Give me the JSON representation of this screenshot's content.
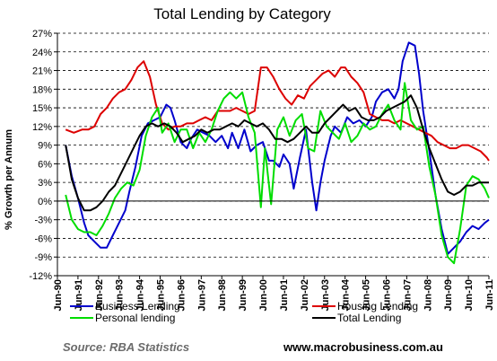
{
  "chart_data": {
    "type": "line",
    "title": "Total Lending by Category",
    "ylabel": "% Growth per Annum",
    "xlabel": "",
    "ylim": [
      -12,
      27
    ],
    "y_ticks": [
      "27%",
      "24%",
      "21%",
      "18%",
      "15%",
      "12%",
      "9%",
      "6%",
      "3%",
      "0%",
      "-3%",
      "-6%",
      "-9%",
      "-12%"
    ],
    "y_tick_values": [
      27,
      24,
      21,
      18,
      15,
      12,
      9,
      6,
      3,
      0,
      -3,
      -6,
      -9,
      -12
    ],
    "x_ticks": [
      "Jun-90",
      "Jun-91",
      "Jun-92",
      "Jun-93",
      "Jun-94",
      "Jun-95",
      "Jun-96",
      "Jun-97",
      "Jun-98",
      "Jun-99",
      "Jun-00",
      "Jun-01",
      "Jun-02",
      "Jun-03",
      "Jun-04",
      "Jun-05",
      "Jun-06",
      "Jun-07",
      "Jun-08",
      "Jun-09",
      "Jun-10",
      "Jun-11"
    ],
    "x_tick_values": [
      1990.5,
      1991.5,
      1992.5,
      1993.5,
      1994.5,
      1995.5,
      1996.5,
      1997.5,
      1998.5,
      1999.5,
      2000.5,
      2001.5,
      2002.5,
      2003.5,
      2004.5,
      2005.5,
      2006.5,
      2007.5,
      2008.5,
      2009.5,
      2010.5,
      2011.5
    ],
    "xlim": [
      1990.5,
      2011.5
    ],
    "grid": "horizontal-dashed",
    "legend_position": "bottom",
    "series": [
      {
        "name": "Business Lending",
        "color": "#0000cc",
        "x": [
          1990.9,
          1991.2,
          1991.5,
          1991.8,
          1992.0,
          1992.3,
          1992.6,
          1992.9,
          1993.2,
          1993.5,
          1993.8,
          1994.0,
          1994.3,
          1994.6,
          1994.9,
          1995.2,
          1995.5,
          1995.8,
          1996.0,
          1996.2,
          1996.5,
          1996.8,
          1997.0,
          1997.3,
          1997.6,
          1997.9,
          1998.2,
          1998.5,
          1998.8,
          1999.0,
          1999.3,
          1999.6,
          1999.9,
          2000.2,
          2000.5,
          2000.8,
          2001.0,
          2001.3,
          2001.5,
          2001.8,
          2002.0,
          2002.3,
          2002.6,
          2002.9,
          2003.1,
          2003.3,
          2003.5,
          2003.8,
          2004.0,
          2004.3,
          2004.6,
          2004.9,
          2005.2,
          2005.5,
          2005.8,
          2006.0,
          2006.3,
          2006.6,
          2006.9,
          2007.1,
          2007.3,
          2007.6,
          2007.9,
          2008.1,
          2008.3,
          2008.6,
          2008.9,
          2009.2,
          2009.5,
          2009.8,
          2010.1,
          2010.4,
          2010.7,
          2011.0,
          2011.3,
          2011.5
        ],
        "values": [
          9.0,
          4.0,
          0.5,
          -3.5,
          -5.5,
          -6.5,
          -7.5,
          -7.5,
          -5.5,
          -3.5,
          -1.5,
          1.5,
          5.5,
          10.5,
          12.5,
          13.0,
          13.5,
          15.5,
          15.0,
          13.0,
          9.5,
          8.5,
          10.0,
          11.5,
          11.0,
          10.5,
          9.5,
          10.5,
          8.5,
          11.0,
          8.5,
          11.5,
          8.0,
          9.0,
          9.5,
          6.5,
          6.5,
          5.5,
          7.5,
          6.0,
          2.0,
          7.0,
          11.5,
          3.0,
          -1.5,
          3.0,
          6.5,
          10.5,
          12.0,
          11.0,
          13.5,
          12.5,
          13.0,
          12.0,
          13.5,
          16.0,
          17.5,
          18.0,
          16.5,
          18.0,
          22.5,
          25.5,
          25.0,
          20.5,
          14.5,
          8.0,
          1.0,
          -4.5,
          -8.5,
          -7.5,
          -6.5,
          -5.0,
          -4.0,
          -4.5,
          -3.5,
          -3.0
        ]
      },
      {
        "name": "Housing Lending",
        "color": "#dd0000",
        "x": [
          1990.9,
          1991.3,
          1991.7,
          1992.0,
          1992.3,
          1992.6,
          1992.9,
          1993.2,
          1993.5,
          1993.8,
          1994.1,
          1994.4,
          1994.7,
          1995.0,
          1995.3,
          1995.6,
          1995.9,
          1996.2,
          1996.5,
          1996.8,
          1997.1,
          1997.4,
          1997.7,
          1998.0,
          1998.3,
          1998.6,
          1998.9,
          1999.2,
          1999.5,
          1999.8,
          2000.1,
          2000.4,
          2000.7,
          2001.0,
          2001.3,
          2001.6,
          2001.9,
          2002.2,
          2002.5,
          2002.8,
          2003.1,
          2003.4,
          2003.7,
          2004.0,
          2004.3,
          2004.5,
          2004.8,
          2005.1,
          2005.4,
          2005.7,
          2006.0,
          2006.3,
          2006.6,
          2006.9,
          2007.2,
          2007.5,
          2007.8,
          2008.1,
          2008.4,
          2008.7,
          2009.0,
          2009.3,
          2009.6,
          2009.9,
          2010.2,
          2010.5,
          2010.8,
          2011.1,
          2011.4,
          2011.5
        ],
        "values": [
          11.5,
          11.0,
          11.5,
          11.5,
          12.0,
          14.0,
          15.0,
          16.5,
          17.5,
          18.0,
          19.5,
          21.5,
          22.5,
          20.0,
          15.5,
          12.5,
          11.5,
          12.0,
          12.0,
          12.5,
          12.5,
          13.0,
          13.5,
          13.0,
          14.5,
          14.5,
          14.5,
          15.0,
          14.5,
          14.0,
          14.5,
          21.5,
          21.5,
          20.0,
          18.0,
          16.5,
          15.5,
          17.0,
          16.5,
          18.5,
          19.5,
          20.5,
          21.0,
          20.0,
          21.5,
          21.5,
          20.0,
          19.0,
          17.5,
          14.0,
          13.5,
          13.0,
          13.0,
          12.5,
          13.0,
          12.5,
          12.0,
          11.5,
          11.0,
          10.5,
          9.5,
          9.0,
          8.5,
          8.5,
          9.0,
          9.0,
          8.5,
          8.0,
          7.0,
          6.5
        ]
      },
      {
        "name": "Personal lending",
        "color": "#00dd00",
        "x": [
          1990.9,
          1991.2,
          1991.5,
          1991.8,
          1992.1,
          1992.4,
          1992.7,
          1993.0,
          1993.3,
          1993.6,
          1993.9,
          1994.2,
          1994.5,
          1994.8,
          1995.1,
          1995.4,
          1995.6,
          1995.9,
          1996.2,
          1996.5,
          1996.8,
          1997.1,
          1997.4,
          1997.7,
          1998.0,
          1998.3,
          1998.6,
          1998.9,
          1999.2,
          1999.5,
          1999.8,
          2000.1,
          2000.4,
          2000.6,
          2000.9,
          2001.2,
          2001.5,
          2001.8,
          2002.1,
          2002.4,
          2002.7,
          2003.0,
          2003.3,
          2003.6,
          2003.9,
          2004.2,
          2004.5,
          2004.8,
          2005.1,
          2005.4,
          2005.7,
          2006.0,
          2006.3,
          2006.6,
          2006.9,
          2007.2,
          2007.4,
          2007.7,
          2008.0,
          2008.3,
          2008.6,
          2008.9,
          2009.2,
          2009.5,
          2009.8,
          2010.1,
          2010.4,
          2010.7,
          2011.0,
          2011.3,
          2011.5
        ],
        "values": [
          1.0,
          -3.0,
          -4.5,
          -5.0,
          -5.0,
          -5.5,
          -4.0,
          -2.0,
          0.5,
          2.0,
          3.0,
          2.5,
          5.0,
          10.5,
          13.5,
          15.0,
          11.0,
          12.5,
          9.5,
          11.5,
          11.5,
          8.5,
          11.0,
          9.5,
          11.5,
          14.5,
          16.5,
          17.5,
          16.5,
          17.5,
          13.5,
          11.0,
          -1.0,
          8.5,
          -0.5,
          11.5,
          13.5,
          10.5,
          13.0,
          14.0,
          8.5,
          8.0,
          14.5,
          12.0,
          11.0,
          10.0,
          12.5,
          9.5,
          10.5,
          12.5,
          11.5,
          12.0,
          14.0,
          15.5,
          13.0,
          11.5,
          19.0,
          13.0,
          11.5,
          12.0,
          5.5,
          1.0,
          -5.5,
          -9.0,
          -10.0,
          -4.5,
          2.5,
          4.0,
          3.5,
          2.0,
          0.5
        ]
      },
      {
        "name": "Total Lending",
        "color": "#000000",
        "x": [
          1990.9,
          1991.2,
          1991.5,
          1991.8,
          1992.1,
          1992.4,
          1992.7,
          1993.0,
          1993.3,
          1993.6,
          1993.9,
          1994.2,
          1994.5,
          1994.8,
          1995.1,
          1995.4,
          1995.7,
          1996.0,
          1996.3,
          1996.6,
          1996.9,
          1997.2,
          1997.5,
          1997.8,
          1998.1,
          1998.4,
          1998.7,
          1999.0,
          1999.3,
          1999.6,
          1999.9,
          2000.2,
          2000.5,
          2000.8,
          2001.1,
          2001.4,
          2001.7,
          2002.0,
          2002.3,
          2002.6,
          2002.9,
          2003.2,
          2003.5,
          2003.8,
          2004.1,
          2004.4,
          2004.7,
          2005.0,
          2005.3,
          2005.6,
          2005.9,
          2006.2,
          2006.5,
          2006.8,
          2007.1,
          2007.4,
          2007.7,
          2008.0,
          2008.3,
          2008.6,
          2008.9,
          2009.2,
          2009.5,
          2009.8,
          2010.1,
          2010.4,
          2010.7,
          2011.0,
          2011.3,
          2011.5
        ],
        "values": [
          9.0,
          3.5,
          0.5,
          -1.5,
          -1.5,
          -1.0,
          0.0,
          1.5,
          2.5,
          4.5,
          6.5,
          8.5,
          10.5,
          12.0,
          12.5,
          12.0,
          12.5,
          12.0,
          11.0,
          9.5,
          10.0,
          10.5,
          11.5,
          11.0,
          11.5,
          11.5,
          12.0,
          12.5,
          12.0,
          13.0,
          12.5,
          12.0,
          12.5,
          11.5,
          10.0,
          10.0,
          9.5,
          10.0,
          11.0,
          12.0,
          11.0,
          11.0,
          12.5,
          13.5,
          14.5,
          15.5,
          14.5,
          15.0,
          13.5,
          13.0,
          13.0,
          13.5,
          14.5,
          15.0,
          15.5,
          16.0,
          17.0,
          15.0,
          11.5,
          8.5,
          6.0,
          3.5,
          1.5,
          1.0,
          1.5,
          2.5,
          2.5,
          3.0,
          3.0,
          3.0
        ]
      }
    ]
  },
  "footer": {
    "source": "Source: RBA Statistics",
    "website": "www.macrobusiness.com.au"
  }
}
